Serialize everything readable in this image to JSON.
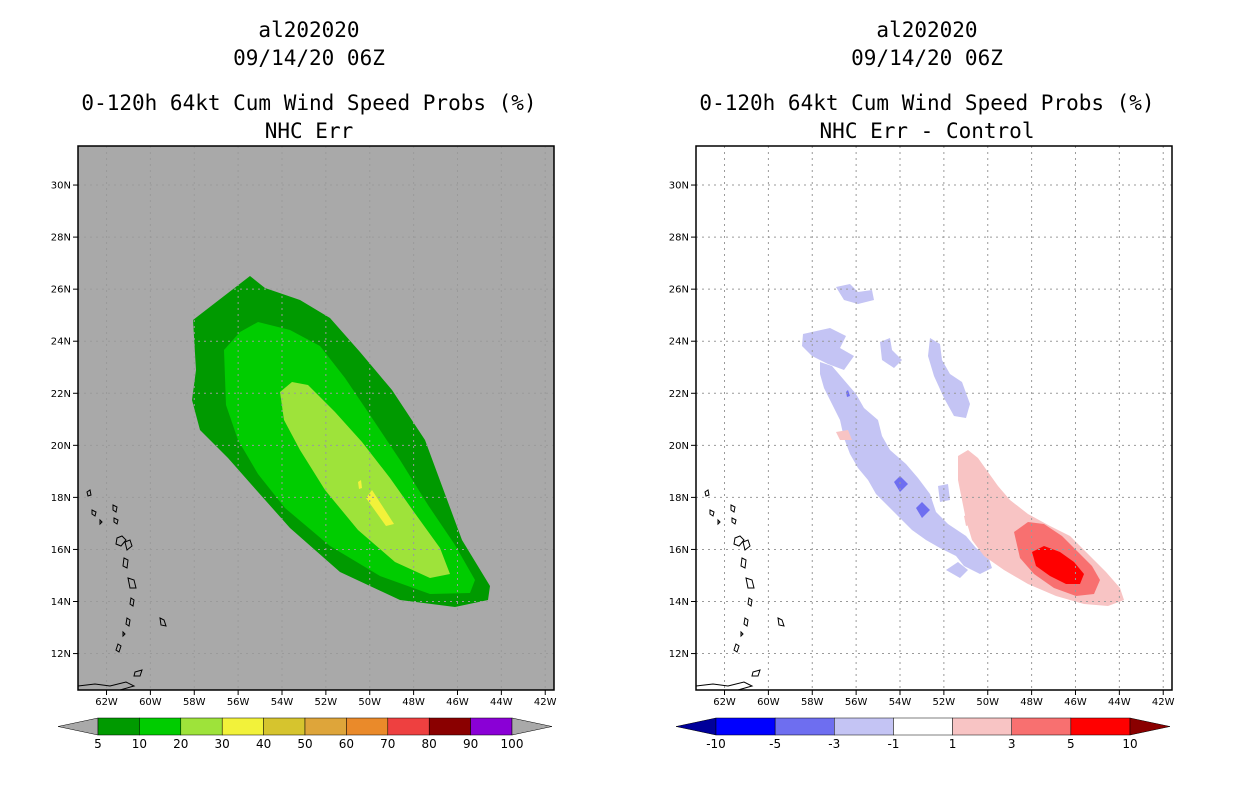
{
  "panels": [
    {
      "id": "left",
      "storm_id": "al202020",
      "datetime": "09/14/20 06Z",
      "title": "0-120h 64kt Cum Wind Speed Probs (%)",
      "subtitle": "NHC Err",
      "background": "#a9a9a9",
      "colorbar": {
        "labels": [
          "5",
          "10",
          "20",
          "30",
          "40",
          "50",
          "60",
          "70",
          "80",
          "90",
          "100"
        ],
        "colors": [
          "#009a00",
          "#00cc00",
          "#9ee33a",
          "#f2f23a",
          "#d6c42e",
          "#dea53a",
          "#ea8a2a",
          "#ee4040",
          "#8a0000",
          "#8a00d6"
        ],
        "under_color": "#a9a9a9",
        "over_color": "#a9a9a9"
      }
    },
    {
      "id": "right",
      "storm_id": "al202020",
      "datetime": "09/14/20 06Z",
      "title": "0-120h 64kt Cum Wind Speed Probs (%)",
      "subtitle": "NHC Err - Control",
      "background": "#ffffff",
      "colorbar": {
        "labels": [
          "-10",
          "-5",
          "-3",
          "-1",
          "1",
          "3",
          "5",
          "10"
        ],
        "colors": [
          "#0000ff",
          "#6e6ef0",
          "#c4c4f4",
          "#ffffff",
          "#f8c4c4",
          "#f87070",
          "#ff0000"
        ],
        "under_color": "#00009a",
        "over_color": "#8a0000"
      }
    }
  ],
  "map": {
    "lat_labels": [
      "12N",
      "14N",
      "16N",
      "18N",
      "20N",
      "22N",
      "24N",
      "26N",
      "28N",
      "30N"
    ],
    "lat_values": [
      12,
      14,
      16,
      18,
      20,
      22,
      24,
      26,
      28,
      30
    ],
    "lon_labels": [
      "62W",
      "60W",
      "58W",
      "56W",
      "54W",
      "52W",
      "50W",
      "48W",
      "46W",
      "44W",
      "42W"
    ],
    "lon_values": [
      -62,
      -60,
      -58,
      -56,
      -54,
      -52,
      -50,
      -48,
      -46,
      -44,
      -42
    ],
    "lon_range": [
      -63.3,
      -41.6
    ],
    "lat_range": [
      10.6,
      31.5
    ]
  },
  "colors": {
    "land_outline": "#000000",
    "grid": "#9a9a9a",
    "frame": "#000000"
  }
}
